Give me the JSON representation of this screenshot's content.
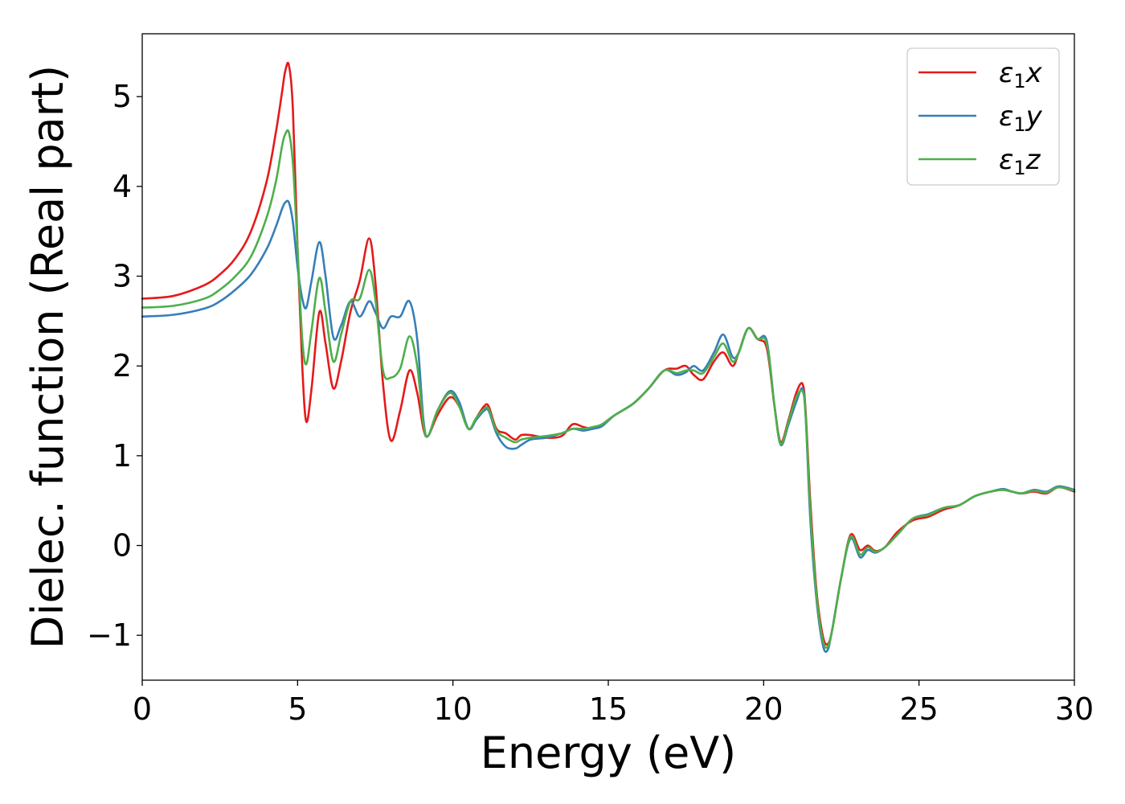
{
  "chart_data": {
    "type": "line",
    "xlabel": "Energy (eV)",
    "ylabel": "Dielec. function (Real part)",
    "xlim": [
      0,
      30
    ],
    "ylim": [
      -1.5,
      5.7
    ],
    "xticks": [
      0,
      5,
      10,
      15,
      20,
      25,
      30
    ],
    "yticks": [
      -1,
      0,
      1,
      2,
      3,
      4,
      5
    ],
    "xtick_labels": [
      "0",
      "5",
      "10",
      "15",
      "20",
      "25",
      "30"
    ],
    "ytick_labels": [
      "−1",
      "0",
      "1",
      "2",
      "3",
      "4",
      "5"
    ],
    "grid": false,
    "legend_position": "top-right",
    "series": [
      {
        "name": "ε1x",
        "legend": {
          "base": "ε",
          "sub": "1",
          "var": "x"
        },
        "color": "#e41a1c",
        "x": [
          0,
          1,
          2,
          2.5,
          3,
          3.5,
          4,
          4.3,
          4.5,
          4.6,
          4.72,
          4.85,
          5.0,
          5.15,
          5.28,
          5.45,
          5.7,
          5.9,
          6.15,
          6.4,
          6.7,
          7.0,
          7.3,
          7.5,
          7.75,
          8.0,
          8.3,
          8.6,
          8.85,
          9.05,
          9.2,
          9.5,
          9.9,
          10.2,
          10.5,
          10.75,
          11.0,
          11.15,
          11.4,
          11.7,
          12.0,
          12.2,
          12.5,
          13.0,
          13.5,
          13.85,
          14.2,
          14.5,
          14.8,
          15.2,
          15.8,
          16.3,
          16.8,
          17.2,
          17.5,
          17.75,
          18.05,
          18.4,
          18.7,
          19.0,
          19.2,
          19.5,
          19.8,
          20.1,
          20.35,
          20.55,
          20.8,
          21.05,
          21.25,
          21.35,
          21.5,
          21.7,
          21.9,
          22.05,
          22.2,
          22.5,
          22.8,
          23.1,
          23.35,
          23.6,
          23.9,
          24.3,
          24.8,
          25.3,
          25.8,
          26.3,
          26.8,
          27.3,
          27.7,
          28.0,
          28.3,
          28.7,
          29.1,
          29.5,
          30.0
        ],
        "values": [
          2.75,
          2.78,
          2.9,
          3.02,
          3.2,
          3.5,
          4.05,
          4.6,
          5.05,
          5.28,
          5.35,
          4.85,
          3.3,
          2.0,
          1.38,
          1.75,
          2.6,
          2.25,
          1.75,
          2.05,
          2.6,
          2.95,
          3.42,
          2.95,
          1.8,
          1.17,
          1.5,
          1.95,
          1.7,
          1.3,
          1.22,
          1.45,
          1.65,
          1.55,
          1.3,
          1.42,
          1.55,
          1.55,
          1.3,
          1.25,
          1.18,
          1.23,
          1.23,
          1.2,
          1.22,
          1.35,
          1.32,
          1.3,
          1.35,
          1.45,
          1.58,
          1.75,
          1.95,
          1.97,
          2.0,
          1.9,
          1.85,
          2.05,
          2.15,
          2.0,
          2.15,
          2.42,
          2.3,
          2.2,
          1.55,
          1.15,
          1.4,
          1.7,
          1.8,
          1.5,
          0.5,
          -0.5,
          -1.0,
          -1.1,
          -0.95,
          -0.35,
          0.12,
          -0.05,
          0.0,
          -0.06,
          -0.02,
          0.15,
          0.28,
          0.32,
          0.4,
          0.45,
          0.55,
          0.6,
          0.62,
          0.6,
          0.58,
          0.6,
          0.58,
          0.65,
          0.6
        ]
      },
      {
        "name": "ε1y",
        "legend": {
          "base": "ε",
          "sub": "1",
          "var": "y"
        },
        "color": "#377eb8",
        "x": [
          0,
          1,
          2,
          2.5,
          3,
          3.5,
          4,
          4.3,
          4.5,
          4.6,
          4.72,
          4.85,
          5.0,
          5.15,
          5.28,
          5.45,
          5.7,
          5.9,
          6.15,
          6.4,
          6.7,
          7.0,
          7.3,
          7.5,
          7.75,
          8.0,
          8.3,
          8.6,
          8.85,
          9.05,
          9.2,
          9.5,
          9.9,
          10.2,
          10.5,
          10.75,
          11.0,
          11.15,
          11.4,
          11.7,
          12.0,
          12.2,
          12.5,
          13.0,
          13.5,
          13.85,
          14.2,
          14.5,
          14.8,
          15.2,
          15.8,
          16.3,
          16.8,
          17.2,
          17.5,
          17.75,
          18.05,
          18.4,
          18.7,
          19.0,
          19.2,
          19.5,
          19.8,
          20.1,
          20.35,
          20.55,
          20.8,
          21.05,
          21.25,
          21.35,
          21.5,
          21.7,
          21.9,
          22.05,
          22.2,
          22.5,
          22.8,
          23.1,
          23.35,
          23.6,
          23.9,
          24.3,
          24.8,
          25.3,
          25.8,
          26.3,
          26.8,
          27.3,
          27.7,
          28.0,
          28.3,
          28.7,
          29.1,
          29.5,
          30.0
        ],
        "values": [
          2.55,
          2.57,
          2.64,
          2.72,
          2.85,
          3.02,
          3.3,
          3.55,
          3.75,
          3.82,
          3.82,
          3.6,
          3.1,
          2.75,
          2.65,
          2.95,
          3.38,
          3.0,
          2.32,
          2.45,
          2.72,
          2.55,
          2.72,
          2.6,
          2.42,
          2.55,
          2.55,
          2.72,
          2.3,
          1.4,
          1.22,
          1.5,
          1.72,
          1.6,
          1.3,
          1.4,
          1.5,
          1.5,
          1.25,
          1.1,
          1.08,
          1.12,
          1.18,
          1.2,
          1.25,
          1.3,
          1.28,
          1.3,
          1.33,
          1.45,
          1.58,
          1.75,
          1.95,
          1.9,
          1.93,
          2.0,
          1.95,
          2.15,
          2.35,
          2.1,
          2.15,
          2.42,
          2.3,
          2.28,
          1.55,
          1.12,
          1.35,
          1.6,
          1.75,
          1.45,
          0.3,
          -0.6,
          -1.1,
          -1.17,
          -0.95,
          -0.35,
          0.08,
          -0.13,
          -0.05,
          -0.08,
          -0.02,
          0.12,
          0.3,
          0.35,
          0.42,
          0.45,
          0.55,
          0.6,
          0.63,
          0.6,
          0.58,
          0.62,
          0.6,
          0.66,
          0.62
        ]
      },
      {
        "name": "ε1z",
        "legend": {
          "base": "ε",
          "sub": "1",
          "var": "z"
        },
        "color": "#4daf4a",
        "x": [
          0,
          1,
          2,
          2.5,
          3,
          3.5,
          4,
          4.3,
          4.5,
          4.6,
          4.72,
          4.85,
          5.0,
          5.15,
          5.28,
          5.45,
          5.7,
          5.9,
          6.15,
          6.4,
          6.7,
          7.0,
          7.3,
          7.5,
          7.75,
          8.0,
          8.3,
          8.6,
          8.85,
          9.05,
          9.2,
          9.5,
          9.9,
          10.2,
          10.5,
          10.75,
          11.0,
          11.15,
          11.4,
          11.7,
          12.0,
          12.2,
          12.5,
          13.0,
          13.5,
          13.85,
          14.2,
          14.5,
          14.8,
          15.2,
          15.8,
          16.3,
          16.8,
          17.2,
          17.5,
          17.75,
          18.05,
          18.4,
          18.7,
          19.0,
          19.2,
          19.5,
          19.8,
          20.1,
          20.35,
          20.55,
          20.8,
          21.05,
          21.25,
          21.35,
          21.5,
          21.7,
          21.9,
          22.05,
          22.2,
          22.5,
          22.8,
          23.1,
          23.35,
          23.6,
          23.9,
          24.3,
          24.8,
          25.3,
          25.8,
          26.3,
          26.8,
          27.3,
          27.7,
          28.0,
          28.3,
          28.7,
          29.1,
          29.5,
          30.0
        ],
        "values": [
          2.65,
          2.67,
          2.75,
          2.85,
          3.0,
          3.22,
          3.65,
          4.05,
          4.45,
          4.58,
          4.6,
          4.25,
          3.3,
          2.3,
          2.02,
          2.4,
          2.98,
          2.6,
          2.05,
          2.35,
          2.72,
          2.75,
          3.07,
          2.75,
          1.95,
          1.87,
          1.97,
          2.33,
          2.0,
          1.35,
          1.22,
          1.5,
          1.7,
          1.55,
          1.3,
          1.42,
          1.52,
          1.52,
          1.28,
          1.2,
          1.15,
          1.18,
          1.2,
          1.22,
          1.25,
          1.3,
          1.3,
          1.32,
          1.35,
          1.45,
          1.58,
          1.75,
          1.95,
          1.92,
          1.95,
          1.95,
          1.92,
          2.1,
          2.25,
          2.05,
          2.15,
          2.42,
          2.3,
          2.25,
          1.55,
          1.13,
          1.38,
          1.65,
          1.72,
          1.45,
          0.4,
          -0.55,
          -1.05,
          -1.13,
          -0.95,
          -0.35,
          0.1,
          -0.1,
          -0.02,
          -0.07,
          -0.02,
          0.12,
          0.3,
          0.34,
          0.42,
          0.45,
          0.55,
          0.6,
          0.62,
          0.6,
          0.58,
          0.61,
          0.59,
          0.65,
          0.61
        ]
      }
    ]
  }
}
